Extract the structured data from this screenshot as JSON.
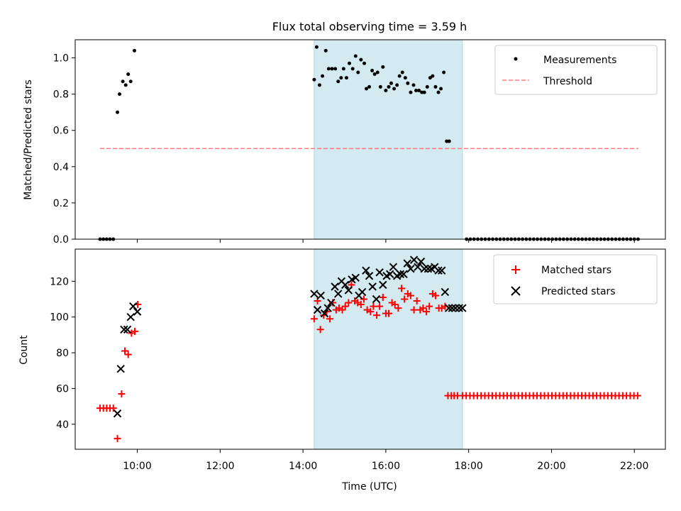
{
  "title": "Flux total observing time = 3.59 h",
  "chart_data": [
    {
      "type": "scatter",
      "panel": "top",
      "ylabel": "Matched/Predicted stars",
      "xlim": [
        8.5,
        22.75
      ],
      "ylim": [
        0,
        1.1
      ],
      "yticks": [
        0.0,
        0.2,
        0.4,
        0.6,
        0.8,
        1.0
      ],
      "ytick_labels": [
        "0.0",
        "0.2",
        "0.4",
        "0.6",
        "0.8",
        "1.0"
      ],
      "shaded_region": {
        "x": [
          14.27,
          17.85
        ],
        "color": "#d3eaf0"
      },
      "legend": {
        "position": "top-right",
        "entries": [
          "Measurements",
          "Threshold"
        ]
      },
      "series": [
        {
          "name": "Measurements",
          "marker": "dot",
          "color": "#000000",
          "x": [
            9.1,
            9.18,
            9.26,
            9.34,
            9.42,
            9.52,
            9.57,
            9.65,
            9.72,
            9.78,
            9.84,
            9.93,
            10.01,
            14.27,
            14.33,
            14.4,
            14.47,
            14.55,
            14.62,
            14.7,
            14.78,
            14.85,
            14.92,
            14.98,
            15.05,
            15.12,
            15.2,
            15.27,
            15.33,
            15.4,
            15.48,
            15.53,
            15.6,
            15.67,
            15.73,
            15.8,
            15.87,
            15.93,
            16.0,
            16.07,
            16.13,
            16.2,
            16.27,
            16.33,
            16.4,
            16.47,
            16.53,
            16.6,
            16.67,
            16.73,
            16.8,
            16.87,
            16.93,
            17.0,
            17.07,
            17.13,
            17.2,
            17.27,
            17.33,
            17.4,
            17.47,
            17.53,
            17.6,
            17.67,
            17.73,
            17.8,
            17.85,
            17.95,
            18.04,
            18.13,
            18.22,
            18.31,
            18.4,
            18.49,
            18.58,
            18.67,
            18.76,
            18.85,
            18.94,
            19.03,
            19.12,
            19.21,
            19.3,
            19.39,
            19.48,
            19.57,
            19.66,
            19.75,
            19.84,
            19.93,
            20.02,
            20.11,
            20.2,
            20.29,
            20.38,
            20.47,
            20.56,
            20.65,
            20.74,
            20.83,
            20.92,
            21.01,
            21.1,
            21.19,
            21.28,
            21.37,
            21.46,
            21.55,
            21.64,
            21.73,
            21.82,
            21.91,
            22.0,
            22.09
          ],
          "y": [
            0,
            0,
            0,
            0,
            0,
            0.7,
            0.8,
            0.87,
            0.85,
            0.91,
            0.87,
            1.04,
            null,
            0.88,
            1.06,
            0.85,
            0.9,
            1.04,
            0.94,
            0.94,
            0.94,
            0.87,
            0.89,
            0.94,
            0.89,
            0.97,
            0.94,
            1.01,
            0.92,
            0.99,
            0.97,
            0.83,
            0.84,
            0.93,
            0.91,
            0.92,
            0.84,
            0.95,
            0.82,
            0.84,
            0.86,
            0.83,
            0.85,
            0.9,
            0.92,
            0.89,
            0.86,
            0.81,
            0.85,
            0.82,
            0.82,
            0.81,
            0.81,
            0.84,
            0.89,
            0.9,
            0.84,
            0.81,
            0.83,
            0.92,
            0.54,
            0.54,
            null,
            null,
            null,
            null,
            null,
            0,
            0,
            0,
            0,
            0,
            0,
            0,
            0,
            0,
            0,
            0,
            0,
            0,
            0,
            0,
            0,
            0,
            0,
            0,
            0,
            0,
            0,
            0,
            0,
            0,
            0,
            0,
            0,
            0,
            0,
            0,
            0,
            0,
            0,
            0,
            0,
            0,
            0,
            0,
            0,
            0,
            0,
            0,
            0,
            0,
            0,
            0
          ]
        },
        {
          "name": "Threshold",
          "style": "dashed",
          "color": "#ff7f7f",
          "x": [
            9.1,
            22.1
          ],
          "y": [
            0.5,
            0.5
          ]
        }
      ]
    },
    {
      "type": "scatter",
      "panel": "bottom",
      "xlabel": "Time (UTC)",
      "ylabel": "Count",
      "xlim": [
        8.5,
        22.75
      ],
      "ylim": [
        26,
        138
      ],
      "xticks": [
        10,
        12,
        14,
        16,
        18,
        20,
        22
      ],
      "xtick_labels": [
        "10:00",
        "12:00",
        "14:00",
        "16:00",
        "18:00",
        "20:00",
        "22:00"
      ],
      "yticks": [
        40,
        60,
        80,
        100,
        120
      ],
      "ytick_labels": [
        "40",
        "60",
        "80",
        "100",
        "120"
      ],
      "shaded_region": {
        "x": [
          14.27,
          17.85
        ],
        "color": "#d3eaf0"
      },
      "legend": {
        "position": "top-right",
        "entries": [
          "Matched stars",
          "Predicted stars"
        ]
      },
      "series": [
        {
          "name": "Matched stars",
          "marker": "plus",
          "color": "#ff0000",
          "x": [
            9.1,
            9.18,
            9.26,
            9.34,
            9.42,
            9.52,
            9.62,
            9.7,
            9.78,
            9.86,
            9.94,
            10.01,
            14.27,
            14.35,
            14.42,
            14.5,
            14.57,
            14.65,
            14.72,
            14.8,
            14.87,
            14.95,
            15.02,
            15.1,
            15.17,
            15.25,
            15.32,
            15.4,
            15.47,
            15.55,
            15.63,
            15.7,
            15.78,
            15.85,
            15.93,
            16.0,
            16.07,
            16.15,
            16.22,
            16.3,
            16.38,
            16.45,
            16.53,
            16.6,
            16.68,
            16.75,
            16.83,
            16.9,
            16.98,
            17.05,
            17.13,
            17.2,
            17.28,
            17.35,
            17.43,
            17.5,
            17.58,
            17.65,
            17.73,
            17.85,
            17.94,
            18.03,
            18.12,
            18.21,
            18.3,
            18.39,
            18.48,
            18.57,
            18.66,
            18.75,
            18.84,
            18.93,
            19.02,
            19.11,
            19.2,
            19.29,
            19.38,
            19.47,
            19.56,
            19.65,
            19.74,
            19.83,
            19.92,
            20.01,
            20.1,
            20.19,
            20.28,
            20.37,
            20.46,
            20.55,
            20.64,
            20.73,
            20.82,
            20.91,
            21.0,
            21.09,
            21.18,
            21.27,
            21.36,
            21.45,
            21.54,
            21.63,
            21.72,
            21.81,
            21.9,
            21.99,
            22.08
          ],
          "y": [
            49,
            49,
            49,
            49,
            49,
            32,
            57,
            81,
            79,
            91,
            92,
            107,
            99,
            109,
            93,
            101,
            103,
            99,
            108,
            104,
            105,
            104,
            106,
            108,
            118,
            109,
            108,
            107,
            110,
            104,
            103,
            106,
            101,
            106,
            111,
            102,
            102,
            108,
            107,
            105,
            116,
            110,
            113,
            112,
            104,
            109,
            104,
            105,
            103,
            106,
            113,
            112,
            105,
            105,
            106,
            56,
            56,
            56,
            56,
            56,
            56,
            56,
            56,
            56,
            56,
            56,
            56,
            56,
            56,
            56,
            56,
            56,
            56,
            56,
            56,
            56,
            56,
            56,
            56,
            56,
            56,
            56,
            56,
            56,
            56,
            56,
            56,
            56,
            56,
            56,
            56,
            56,
            56,
            56,
            56,
            56,
            56,
            56,
            56,
            56,
            56,
            56,
            56,
            56,
            56,
            56,
            56
          ]
        },
        {
          "name": "Predicted stars",
          "marker": "x",
          "color": "#000000",
          "x": [
            9.52,
            9.6,
            9.68,
            9.76,
            9.84,
            9.9,
            10.0,
            14.27,
            14.35,
            14.43,
            14.52,
            14.6,
            14.68,
            14.77,
            14.85,
            14.93,
            15.02,
            15.1,
            15.18,
            15.27,
            15.35,
            15.43,
            15.52,
            15.6,
            15.68,
            15.77,
            15.85,
            15.93,
            16.02,
            16.1,
            16.18,
            16.27,
            16.35,
            16.43,
            16.52,
            16.6,
            16.68,
            16.77,
            16.85,
            16.93,
            17.02,
            17.1,
            17.18,
            17.27,
            17.35,
            17.43,
            17.52,
            17.6,
            17.68,
            17.77,
            17.85
          ],
          "y": [
            46,
            71,
            93,
            93,
            100,
            106,
            103,
            113,
            104,
            112,
            102,
            105,
            108,
            117,
            113,
            120,
            118,
            115,
            121,
            122,
            112,
            114,
            126,
            123,
            117,
            110,
            125,
            118,
            123,
            124,
            128,
            123,
            124,
            124,
            130,
            127,
            132,
            128,
            131,
            127,
            127,
            127,
            128,
            126,
            126,
            114,
            105,
            105,
            105,
            105,
            105
          ]
        }
      ]
    }
  ]
}
